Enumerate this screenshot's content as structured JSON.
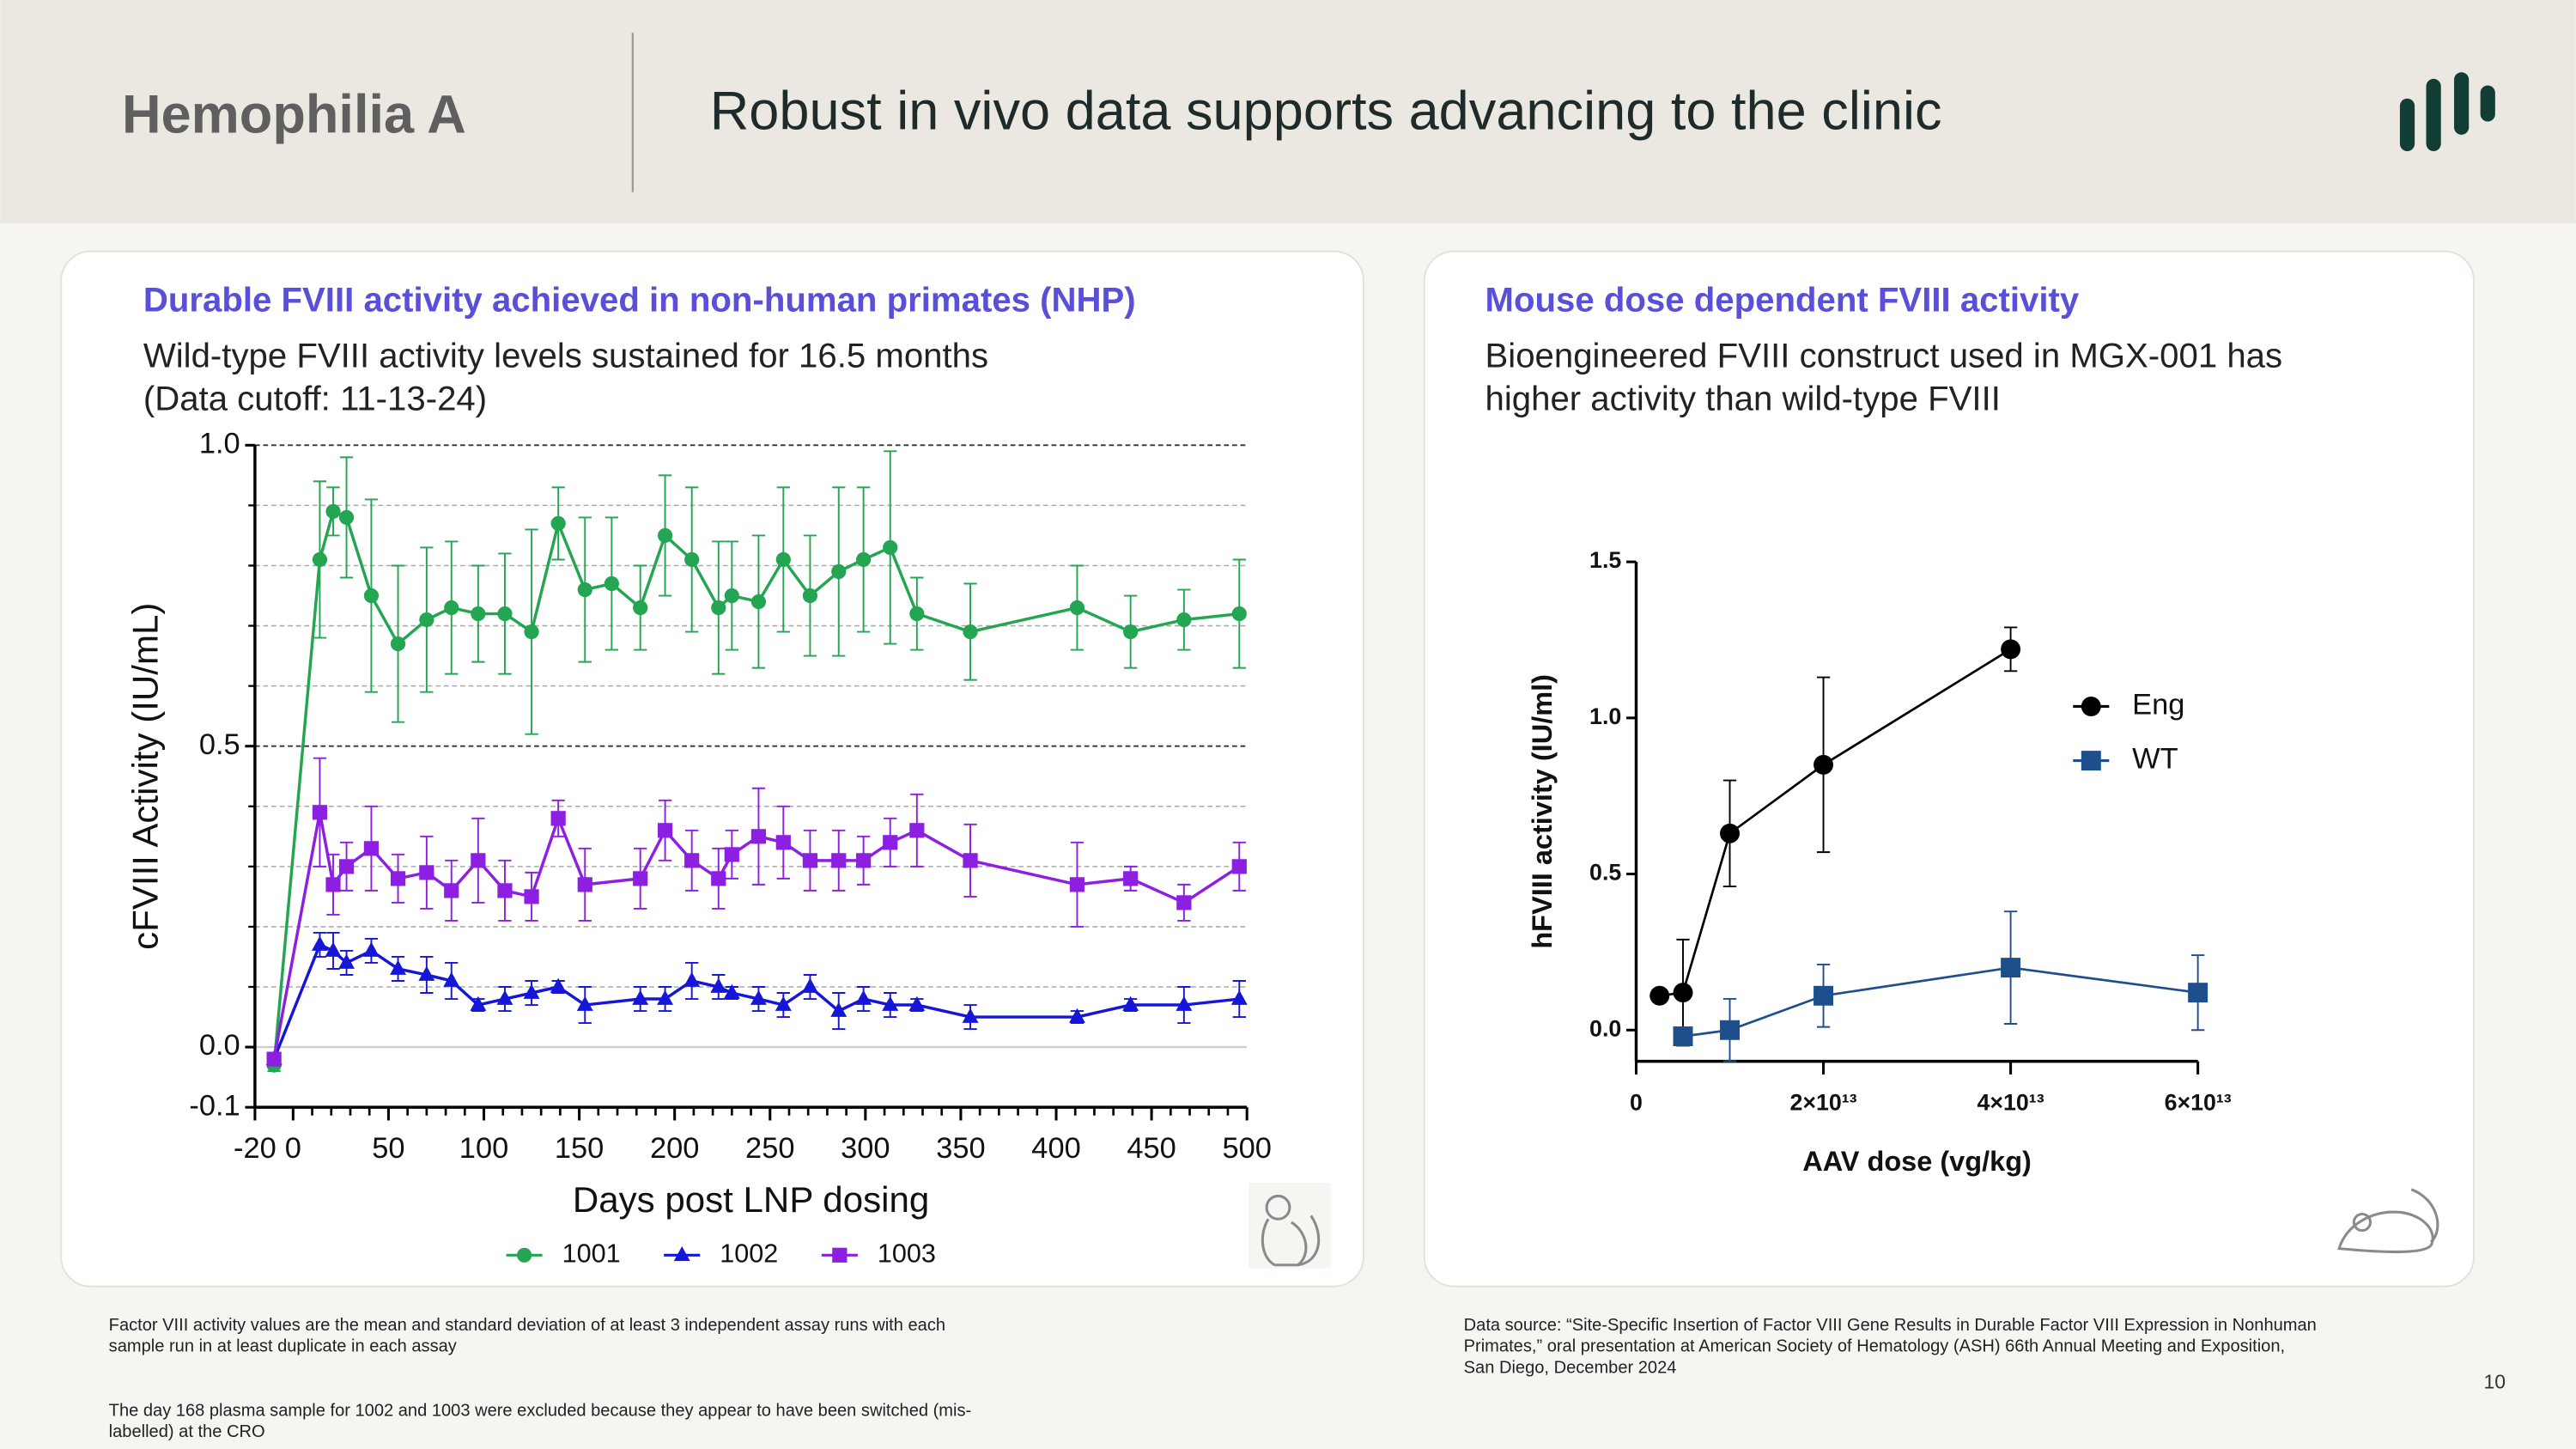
{
  "header": {
    "section": "Hemophilia A",
    "title": "Robust in vivo data supports advancing to the clinic"
  },
  "chart_data": [
    {
      "type": "line",
      "title": "Durable FVIII activity achieved in non-human primates (NHP)",
      "subtitle": [
        "Wild-type FVIII activity levels sustained for 16.5 months",
        "(Data cutoff: 11-13-24)"
      ],
      "x_label": "Days post LNP dosing",
      "y_label": "cFVIII Activity (IU/mL)",
      "xlim": [
        -20,
        500
      ],
      "ylim": [
        -0.1,
        1.0
      ],
      "xticks": [
        -20,
        0,
        50,
        100,
        150,
        200,
        250,
        300,
        350,
        400,
        450,
        500
      ],
      "minor_xticks": [
        10,
        20,
        30,
        40,
        60,
        70,
        80,
        90,
        110,
        120,
        130,
        140,
        160,
        170,
        180,
        190,
        210,
        220,
        230,
        240,
        260,
        270,
        280,
        290,
        310,
        320,
        330,
        340,
        360,
        370,
        380,
        390,
        410,
        420,
        430,
        440,
        460,
        470,
        480,
        490
      ],
      "yticks": [
        -0.1,
        {
          "value": 0,
          "label": "0.0"
        },
        0.5,
        {
          "value": 1,
          "label": "1.0"
        }
      ],
      "minor_yticks": [
        0.1,
        0.2,
        0.3,
        0.4,
        0.6,
        0.7,
        0.8,
        0.9
      ],
      "grid": true,
      "legend": "bottom",
      "series": [
        {
          "name": "1001",
          "color": "#23a552",
          "marker": "circle",
          "x": [
            -10,
            14,
            21,
            28,
            41,
            55,
            70,
            83,
            97,
            111,
            125,
            139,
            153,
            167,
            182,
            195,
            209,
            223,
            230,
            244,
            257,
            271,
            286,
            299,
            313,
            327,
            355,
            411,
            439,
            467,
            496
          ],
          "values": [
            -0.03,
            0.81,
            0.89,
            0.88,
            0.75,
            0.67,
            0.71,
            0.73,
            0.72,
            0.72,
            0.69,
            0.87,
            0.76,
            0.77,
            0.73,
            0.85,
            0.81,
            0.73,
            0.75,
            0.74,
            0.81,
            0.75,
            0.79,
            0.81,
            0.83,
            0.72,
            0.69,
            0.73,
            0.69,
            0.71,
            0.72
          ],
          "errors": [
            0.01,
            0.13,
            0.04,
            0.1,
            0.16,
            0.13,
            0.12,
            0.11,
            0.08,
            0.1,
            0.17,
            0.06,
            0.12,
            0.11,
            0.07,
            0.1,
            0.12,
            0.11,
            0.09,
            0.11,
            0.12,
            0.1,
            0.14,
            0.12,
            0.16,
            0.06,
            0.08,
            0.07,
            0.06,
            0.05,
            0.09
          ]
        },
        {
          "name": "1002",
          "color": "#1616d8",
          "marker": "triangle",
          "x": [
            -10,
            14,
            21,
            28,
            41,
            55,
            70,
            83,
            97,
            111,
            125,
            139,
            153,
            182,
            195,
            209,
            223,
            230,
            244,
            257,
            271,
            286,
            299,
            313,
            327,
            355,
            411,
            439,
            467,
            496
          ],
          "values": [
            -0.02,
            0.17,
            0.16,
            0.14,
            0.16,
            0.13,
            0.12,
            0.11,
            0.07,
            0.08,
            0.09,
            0.1,
            0.07,
            0.08,
            0.08,
            0.11,
            0.1,
            0.09,
            0.08,
            0.07,
            0.1,
            0.06,
            0.08,
            0.07,
            0.07,
            0.05,
            0.05,
            0.07,
            0.07,
            0.08
          ],
          "errors": [
            0.01,
            0.02,
            0.03,
            0.02,
            0.02,
            0.02,
            0.03,
            0.03,
            0.01,
            0.02,
            0.02,
            0.01,
            0.03,
            0.02,
            0.02,
            0.03,
            0.02,
            0.01,
            0.02,
            0.02,
            0.02,
            0.03,
            0.02,
            0.02,
            0.01,
            0.02,
            0.01,
            0.01,
            0.03,
            0.03
          ]
        },
        {
          "name": "1003",
          "color": "#8c1fe2",
          "marker": "square",
          "x": [
            -10,
            14,
            21,
            28,
            41,
            55,
            70,
            83,
            97,
            111,
            125,
            139,
            153,
            182,
            195,
            209,
            223,
            230,
            244,
            257,
            271,
            286,
            299,
            313,
            327,
            355,
            411,
            439,
            467,
            496
          ],
          "values": [
            -0.02,
            0.39,
            0.27,
            0.3,
            0.33,
            0.28,
            0.29,
            0.26,
            0.31,
            0.26,
            0.25,
            0.38,
            0.27,
            0.28,
            0.36,
            0.31,
            0.28,
            0.32,
            0.35,
            0.34,
            0.31,
            0.31,
            0.31,
            0.34,
            0.36,
            0.31,
            0.27,
            0.28,
            0.24,
            0.3
          ],
          "errors": [
            0.01,
            0.09,
            0.05,
            0.04,
            0.07,
            0.04,
            0.06,
            0.05,
            0.07,
            0.05,
            0.04,
            0.03,
            0.06,
            0.05,
            0.05,
            0.05,
            0.05,
            0.04,
            0.08,
            0.06,
            0.05,
            0.05,
            0.04,
            0.04,
            0.06,
            0.06,
            0.07,
            0.02,
            0.03,
            0.04
          ]
        }
      ],
      "footnotes": [
        [
          "Factor VIII activity values are the mean and standard deviation of at least 3 independent assay runs with each",
          "sample run in at least duplicate in each assay"
        ],
        [
          "The day 168 plasma sample for 1002 and 1003 were excluded because they appear to have been switched (mis-",
          "labelled) at the CRO"
        ]
      ]
    },
    {
      "type": "line",
      "title": "Mouse dose dependent FVIII activity",
      "subtitle": [
        "Bioengineered FVIII construct used in MGX-001 has",
        "higher activity than wild-type FVIII"
      ],
      "x_label": "AAV dose (vg/kg)",
      "y_label": "hFVIII activity (IU/ml)",
      "xlim": [
        0,
        60000000000000
      ],
      "ylim": [
        -0.1,
        1.5
      ],
      "xticks": [
        0,
        {
          "value": 20000000000000,
          "label": "2×10¹³"
        },
        {
          "value": 40000000000000,
          "label": "4×10¹³"
        },
        {
          "value": 60000000000000,
          "label": "6×10¹³"
        }
      ],
      "yticks": [
        {
          "value": 0,
          "label": "0.0"
        },
        0.5,
        {
          "value": 1,
          "label": "1.0"
        },
        1.5
      ],
      "grid": false,
      "legend": "right",
      "series": [
        {
          "name": "Eng",
          "color": "#000000",
          "marker": "circle",
          "x": [
            2500000000000,
            5000000000000,
            10000000000000,
            20000000000000,
            40000000000000
          ],
          "values": [
            0.11,
            0.12,
            0.63,
            0.85,
            1.22
          ],
          "errors": [
            0,
            0.17,
            0.17,
            0.28,
            0.07
          ]
        },
        {
          "name": "WT",
          "color": "#1f4e8c",
          "marker": "square",
          "x": [
            5000000000000,
            10000000000000,
            20000000000000,
            40000000000000,
            60000000000000
          ],
          "values": [
            -0.02,
            0,
            0.11,
            0.2,
            0.12
          ],
          "errors": [
            0.01,
            0.1,
            0.1,
            0.18,
            0.12
          ]
        }
      ],
      "footnotes": [
        [
          "Data source: “Site-Specific Insertion of Factor VIII Gene Results in Durable Factor VIII Expression in Nonhuman",
          "Primates,” oral presentation at  American Society of Hematology (ASH) 66th Annual Meeting and Exposition,",
          "San Diego, December 2024"
        ]
      ]
    }
  ],
  "page_number": "10"
}
